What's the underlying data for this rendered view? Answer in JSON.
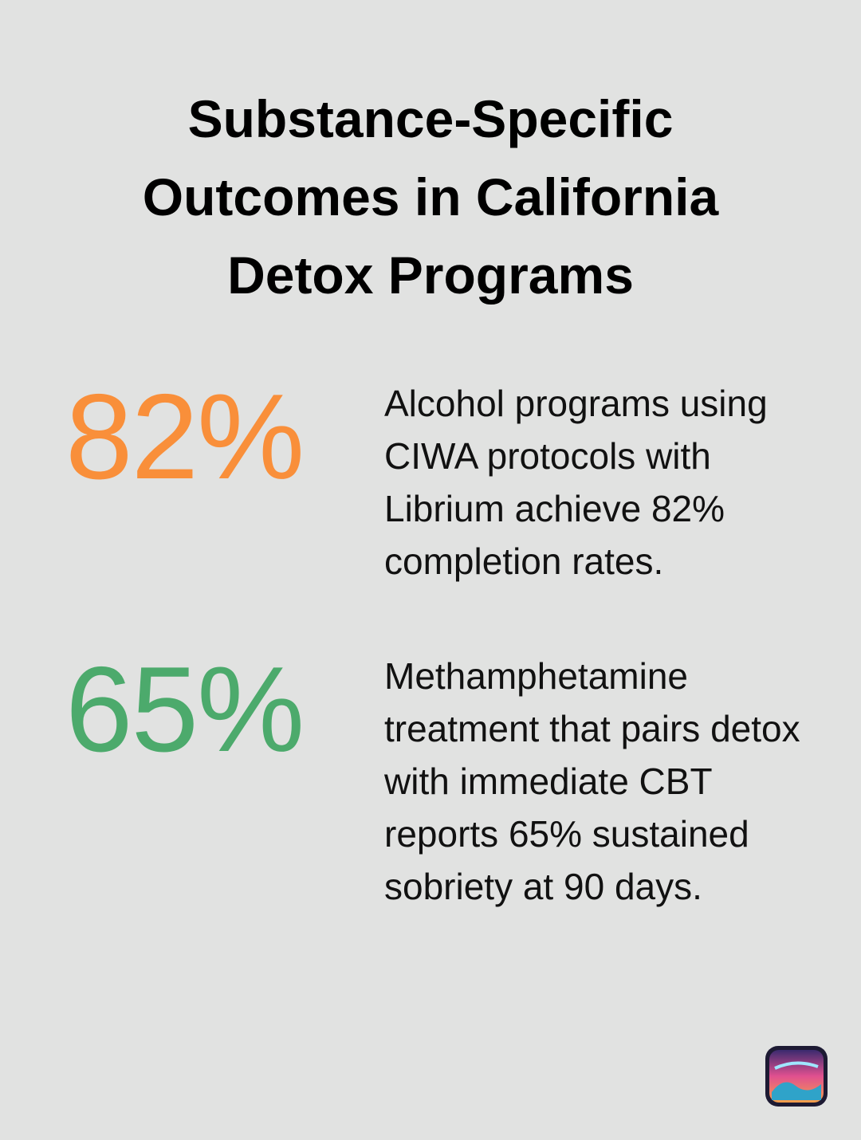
{
  "title": "Substance-Specific Outcomes in California Detox Programs",
  "stats": [
    {
      "value": "82%",
      "description": "Alcohol programs using CIWA protocols with Librium achieve 82% completion rates."
    },
    {
      "value": "65%",
      "description": "Methamphetamine treatment that pairs detox with immediate CBT reports 65% sustained sobriety at 90 days."
    }
  ]
}
